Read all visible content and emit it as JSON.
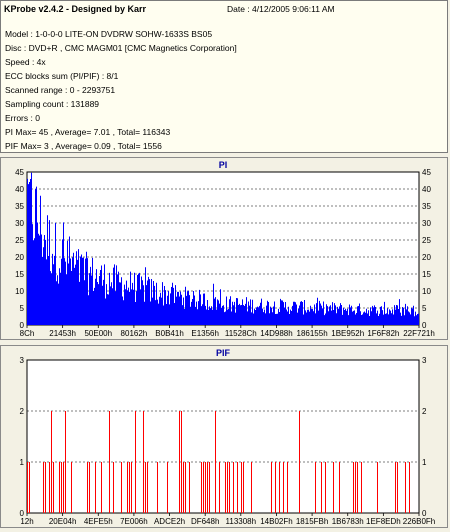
{
  "header": {
    "app_title": "KProbe v2.4.2 - Designed by Karr",
    "date": "Date : 4/12/2005 9:06:11 AM",
    "lines": [
      "Model : 1-0-0-0 LITE-ON DVDRW SOHW-1633S BS05",
      "Disc : DVD+R , CMC MAGM01 [CMC Magnetics Corporation]",
      "Speed : 4x",
      "ECC blocks sum (PI/PIF) : 8/1",
      "Scanned range : 0 - 2293751",
      "Sampling count : 131889",
      "Errors : 0",
      "PI Max= 45 , Average= 7.01 , Total= 116343",
      "PIF Max= 3 , Average= 0.09 , Total= 1556"
    ]
  },
  "chart_data": [
    {
      "type": "area",
      "title": "PI",
      "ylim": [
        0,
        45
      ],
      "yticks": [
        0,
        5,
        10,
        15,
        20,
        25,
        30,
        35,
        40,
        45
      ],
      "x_tick_labels": [
        "8Ch",
        "21453h",
        "50E00h",
        "80162h",
        "B0B41h",
        "E1356h",
        "11528Ch",
        "14D988h",
        "186155h",
        "1BE952h",
        "1F6F82h",
        "22F721h"
      ],
      "grid": true,
      "color": "#0000ff",
      "x_range": [
        0,
        2293751
      ],
      "trend": {
        "x_fraction": [
          0,
          0.02,
          0.05,
          0.1,
          0.15,
          0.2,
          0.3,
          0.4,
          0.5,
          0.6,
          0.7,
          0.8,
          0.9,
          1.0
        ],
        "y": [
          40,
          34,
          26,
          19,
          16,
          14,
          11,
          8.5,
          6.5,
          6,
          5.5,
          5,
          4.5,
          4.5
        ]
      }
    },
    {
      "type": "bar",
      "title": "PIF",
      "ylim": [
        0,
        3
      ],
      "yticks": [
        0,
        1,
        2,
        3
      ],
      "x_tick_labels": [
        "12h",
        "20E04h",
        "4EFE5h",
        "7E006h",
        "ADCE2h",
        "DF648h",
        "113308h",
        "14B02Fh",
        "1815FBh",
        "1B6783h",
        "1EF8EDh",
        "226B0Fh"
      ],
      "grid": true,
      "color": "#ff0000",
      "x_range": [
        0,
        2293751
      ],
      "max": 3,
      "average": 0.09
    }
  ]
}
